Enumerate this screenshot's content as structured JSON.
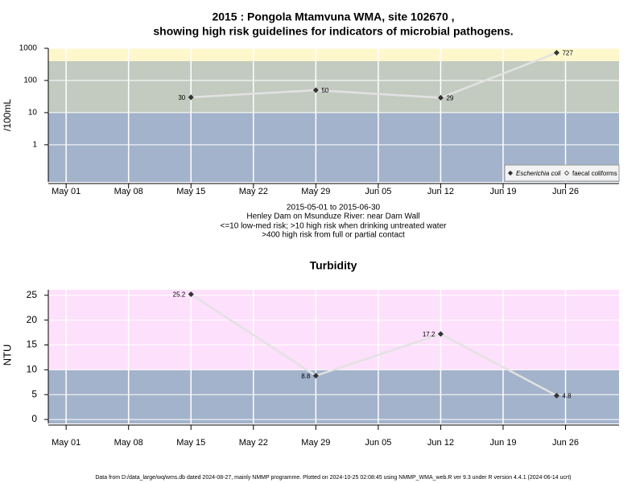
{
  "chart_data": [
    {
      "type": "line",
      "title": "2015 : Pongola Mtamvuna WMA, site 102670 ,",
      "subtitle": "showing high risk guidelines for indicators of microbial pathogens.",
      "y_label": "/100mL",
      "x": [
        "May 15",
        "May 29",
        "Jun 12",
        "Jun 25"
      ],
      "series": [
        {
          "name": "Escherichia coli",
          "color": "#333333",
          "values": [
            30,
            50,
            29,
            727
          ]
        },
        {
          "name": "faecal coliforms",
          "color": "#333333",
          "values": [
            null,
            null,
            null,
            null
          ]
        }
      ],
      "line_color": "#e2e2e2",
      "xlim": [
        "Apr 29",
        "Jul 02"
      ],
      "xticks": [
        "May 01",
        "May 08",
        "May 15",
        "May 22",
        "May 29",
        "Jun 05",
        "Jun 12",
        "Jun 19",
        "Jun 26"
      ],
      "ylim": [
        0.07,
        1000
      ],
      "yticks": [
        1,
        10,
        100,
        1000
      ],
      "log_y": true,
      "grid": true,
      "band_breaks": [
        10,
        400
      ],
      "band_colors": [
        "#a3b3cb",
        "#c3cbc0",
        "#fff7cc"
      ],
      "legend": "lower right",
      "notes": [
        "2015-05-01 to 2015-06-30",
        "Henley Dam on Msunduze River: near Dam Wall",
        "<=10 low-med risk; >10 high risk when drinking untreated water",
        ">400 high risk from full or partial contact"
      ]
    },
    {
      "type": "line",
      "title": "Turbidity",
      "y_label": "NTU",
      "x": [
        "May 15",
        "May 29",
        "Jun 12",
        "Jun 25"
      ],
      "series": [
        {
          "color": "#333333",
          "values": [
            25.2,
            8.8,
            17.2,
            4.8
          ]
        }
      ],
      "line_color": "#e2e2e2",
      "xlim": [
        "Apr 29",
        "Jul 02"
      ],
      "xticks": [
        "May 01",
        "May 08",
        "May 15",
        "May 22",
        "May 29",
        "Jun 05",
        "Jun 12",
        "Jun 19",
        "Jun 26"
      ],
      "ylim": [
        -0.8,
        26.1
      ],
      "yticks": [
        0,
        5,
        10,
        15,
        20,
        25
      ],
      "log_y": false,
      "grid": true,
      "band_breaks": [
        10
      ],
      "band_colors": [
        "#a3b3cb",
        "#fde0fb"
      ]
    }
  ],
  "footer": "Data from D:/data_large/wq/wms.db dated 2024-08-27, mainly NMMP programme. Plotted on 2024-10-25 02:08:45 using NMMP_WMA_web.R ver 9.3 under R version 4.4.1 (2024-06-14 ucrt)"
}
